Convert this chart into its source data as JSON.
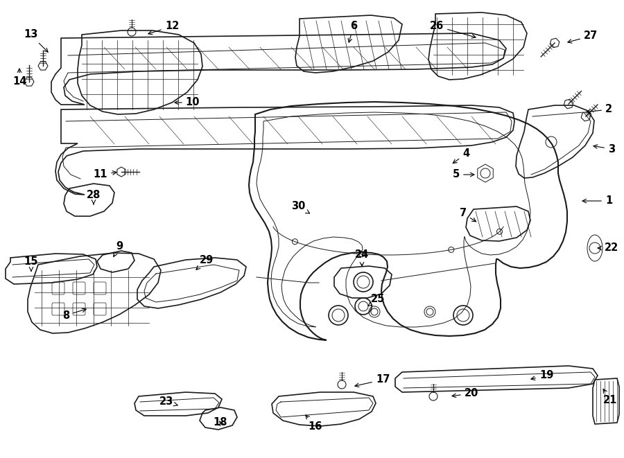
{
  "bg_color": "#ffffff",
  "line_color": "#1a1a1a",
  "lw_main": 1.2,
  "lw_thin": 0.7,
  "lw_thick": 1.5,
  "label_fontsize": 10.5
}
